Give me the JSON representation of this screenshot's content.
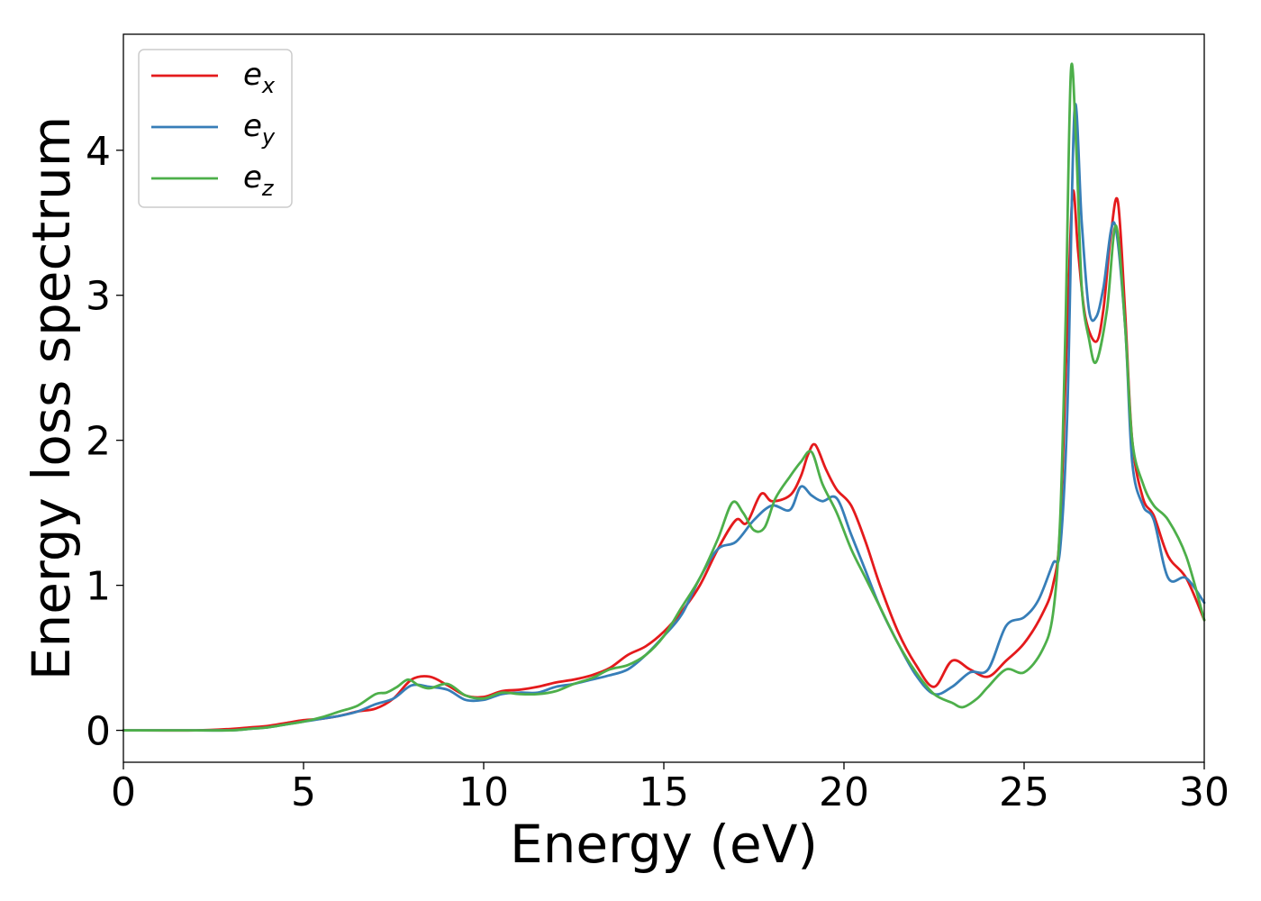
{
  "chart_data": {
    "type": "line",
    "title": "",
    "xlabel": "Energy (eV)",
    "ylabel": "Energy loss spectrum",
    "xlim": [
      0,
      30
    ],
    "ylim": [
      -0.22,
      4.8
    ],
    "xticks": [
      0,
      5,
      10,
      15,
      20,
      25,
      30
    ],
    "yticks": [
      0,
      1,
      2,
      3,
      4
    ],
    "grid": false,
    "legend_position": "top-left",
    "series": [
      {
        "name": "e_x",
        "label_base": "e",
        "label_sub": "x",
        "color": "#e41a1c",
        "x": [
          0,
          2,
          3,
          3.5,
          4,
          4.5,
          5,
          5.5,
          6,
          6.5,
          7,
          7.5,
          8,
          8.5,
          9,
          9.5,
          10,
          10.5,
          11,
          11.5,
          12,
          12.5,
          13,
          13.5,
          14,
          14.5,
          15,
          15.5,
          16,
          16.5,
          17,
          17.3,
          17.7,
          18,
          18.5,
          18.8,
          19,
          19.2,
          19.5,
          19.8,
          20.2,
          20.6,
          21,
          21.5,
          22,
          22.5,
          23,
          23.5,
          24,
          24.5,
          25,
          25.5,
          25.8,
          26,
          26.2,
          26.35,
          26.5,
          26.7,
          27,
          27.2,
          27.4,
          27.6,
          27.8,
          28,
          28.3,
          28.6,
          29,
          29.5,
          30
        ],
        "y": [
          0,
          0,
          0.01,
          0.02,
          0.03,
          0.05,
          0.07,
          0.08,
          0.1,
          0.13,
          0.15,
          0.22,
          0.35,
          0.37,
          0.31,
          0.24,
          0.23,
          0.27,
          0.28,
          0.3,
          0.33,
          0.35,
          0.38,
          0.43,
          0.52,
          0.58,
          0.68,
          0.82,
          1.0,
          1.25,
          1.45,
          1.43,
          1.63,
          1.58,
          1.62,
          1.75,
          1.9,
          1.97,
          1.8,
          1.66,
          1.55,
          1.3,
          1.0,
          0.68,
          0.45,
          0.3,
          0.48,
          0.42,
          0.37,
          0.48,
          0.6,
          0.8,
          1.0,
          1.4,
          2.8,
          3.71,
          3.3,
          2.85,
          2.68,
          2.9,
          3.4,
          3.65,
          2.9,
          2.0,
          1.6,
          1.48,
          1.2,
          1.05,
          0.76
        ]
      },
      {
        "name": "e_y",
        "label_base": "e",
        "label_sub": "y",
        "color": "#377eb8",
        "x": [
          0,
          2,
          3,
          3.5,
          4,
          4.5,
          5,
          5.5,
          6,
          6.5,
          7,
          7.5,
          8,
          8.5,
          9,
          9.5,
          10,
          10.5,
          11,
          11.5,
          12,
          12.5,
          13,
          13.5,
          14,
          14.5,
          15,
          15.5,
          16,
          16.5,
          17,
          17.5,
          18,
          18.5,
          18.8,
          19.1,
          19.4,
          19.8,
          20.2,
          20.6,
          21,
          21.5,
          22,
          22.5,
          23,
          23.5,
          24,
          24.5,
          25,
          25.4,
          25.8,
          26,
          26.2,
          26.4,
          26.6,
          26.8,
          27,
          27.2,
          27.5,
          27.8,
          28,
          28.3,
          28.6,
          29,
          29.5,
          30
        ],
        "y": [
          0,
          0,
          0,
          0.01,
          0.02,
          0.04,
          0.06,
          0.08,
          0.1,
          0.13,
          0.18,
          0.22,
          0.31,
          0.3,
          0.28,
          0.21,
          0.21,
          0.25,
          0.26,
          0.26,
          0.3,
          0.32,
          0.35,
          0.38,
          0.42,
          0.52,
          0.65,
          0.8,
          1.05,
          1.25,
          1.3,
          1.45,
          1.55,
          1.52,
          1.68,
          1.62,
          1.58,
          1.6,
          1.35,
          1.1,
          0.85,
          0.6,
          0.38,
          0.25,
          0.3,
          0.4,
          0.42,
          0.72,
          0.78,
          0.9,
          1.15,
          1.25,
          2.2,
          4.28,
          3.5,
          2.9,
          2.85,
          3.05,
          3.5,
          2.8,
          1.85,
          1.55,
          1.45,
          1.05,
          1.05,
          0.88
        ]
      },
      {
        "name": "e_z",
        "label_base": "e",
        "label_sub": "z",
        "color": "#4daf4a",
        "x": [
          0,
          2,
          3,
          3.5,
          4,
          4.5,
          5,
          5.5,
          6,
          6.5,
          7,
          7.3,
          7.6,
          7.9,
          8.2,
          8.5,
          9,
          9.5,
          10,
          10.5,
          11,
          11.5,
          12,
          12.5,
          13,
          13.5,
          14,
          14.5,
          15,
          15.5,
          16,
          16.5,
          16.9,
          17.2,
          17.5,
          17.8,
          18.1,
          18.5,
          18.8,
          19.1,
          19.4,
          19.8,
          20.2,
          20.6,
          21,
          21.5,
          22,
          22.5,
          23,
          23.3,
          23.7,
          24,
          24.5,
          25,
          25.5,
          25.8,
          26,
          26.15,
          26.3,
          26.45,
          26.6,
          26.8,
          27,
          27.3,
          27.55,
          27.8,
          28,
          28.3,
          28.6,
          29,
          29.5,
          30
        ],
        "y": [
          0,
          0,
          0,
          0.01,
          0.02,
          0.04,
          0.06,
          0.09,
          0.13,
          0.17,
          0.25,
          0.26,
          0.3,
          0.35,
          0.31,
          0.29,
          0.32,
          0.24,
          0.22,
          0.26,
          0.25,
          0.25,
          0.27,
          0.32,
          0.36,
          0.42,
          0.45,
          0.52,
          0.65,
          0.85,
          1.05,
          1.32,
          1.57,
          1.5,
          1.38,
          1.4,
          1.6,
          1.75,
          1.85,
          1.92,
          1.7,
          1.5,
          1.25,
          1.05,
          0.85,
          0.6,
          0.4,
          0.25,
          0.19,
          0.16,
          0.22,
          0.3,
          0.42,
          0.4,
          0.55,
          0.8,
          1.45,
          2.8,
          4.55,
          4.0,
          3.05,
          2.7,
          2.54,
          2.9,
          3.48,
          2.8,
          2.0,
          1.7,
          1.55,
          1.45,
          1.2,
          0.76
        ]
      }
    ]
  }
}
